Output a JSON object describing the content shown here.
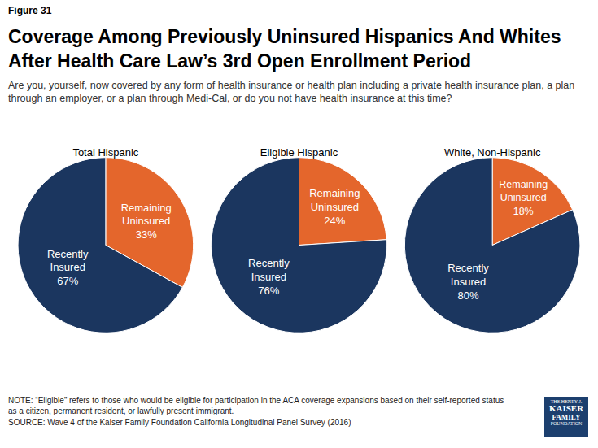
{
  "figure_label": "Figure 31",
  "title": "Coverage Among Previously Uninsured Hispanics And Whites After Health Care Law’s 3rd Open Enrollment Period",
  "subtitle": "Are you, yourself, now covered by any form of health insurance or health plan including a private health insurance plan, a plan through an employer, or a plan through Medi-Cal, or do you not have health insurance at this time?",
  "note": "NOTE: “Eligible” refers to those who would be eligible for participation in the ACA coverage expansions based on their self-reported status as a citizen, permanent resident, or lawfully present immigrant.",
  "source": "SOURCE: Wave 4 of the Kaiser Family Foundation California Longitudinal Panel Survey (2016)",
  "logo": [
    "THE HENRY J.",
    "KAISER",
    "FAMILY",
    "FOUNDATION"
  ],
  "chart_data": [
    {
      "type": "pie",
      "title": "Total Hispanic",
      "labels": [
        "Remaining Uninsured",
        "Recently Insured"
      ],
      "values": [
        33,
        67
      ],
      "value_labels": [
        "33%",
        "67%"
      ],
      "colors": [
        "#e4662c",
        "#1b365f"
      ],
      "data_labels": true
    },
    {
      "type": "pie",
      "title": "Eligible Hispanic",
      "labels": [
        "Remaining Uninsured",
        "Recently Insured"
      ],
      "values": [
        24,
        76
      ],
      "value_labels": [
        "24%",
        "76%"
      ],
      "colors": [
        "#e4662c",
        "#1b365f"
      ],
      "data_labels": true
    },
    {
      "type": "pie",
      "title": "White, Non-Hispanic",
      "labels": [
        "Remaining Uninsured",
        "Recently Insured"
      ],
      "values": [
        18,
        80
      ],
      "value_labels": [
        "18%",
        "80%"
      ],
      "colors": [
        "#e4662c",
        "#1b365f"
      ],
      "data_labels": true
    }
  ]
}
